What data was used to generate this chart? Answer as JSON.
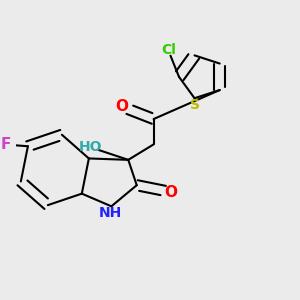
{
  "background_color": "#ebebeb",
  "bond_color": "#000000",
  "bond_width": 1.5,
  "figsize": [
    3.0,
    3.0
  ],
  "dpi": 100,
  "colors": {
    "Cl": "#33cc00",
    "S": "#bbbb00",
    "O": "#ff0000",
    "HO": "#33aaaa",
    "F": "#cc44cc",
    "NH": "#2222ff"
  }
}
